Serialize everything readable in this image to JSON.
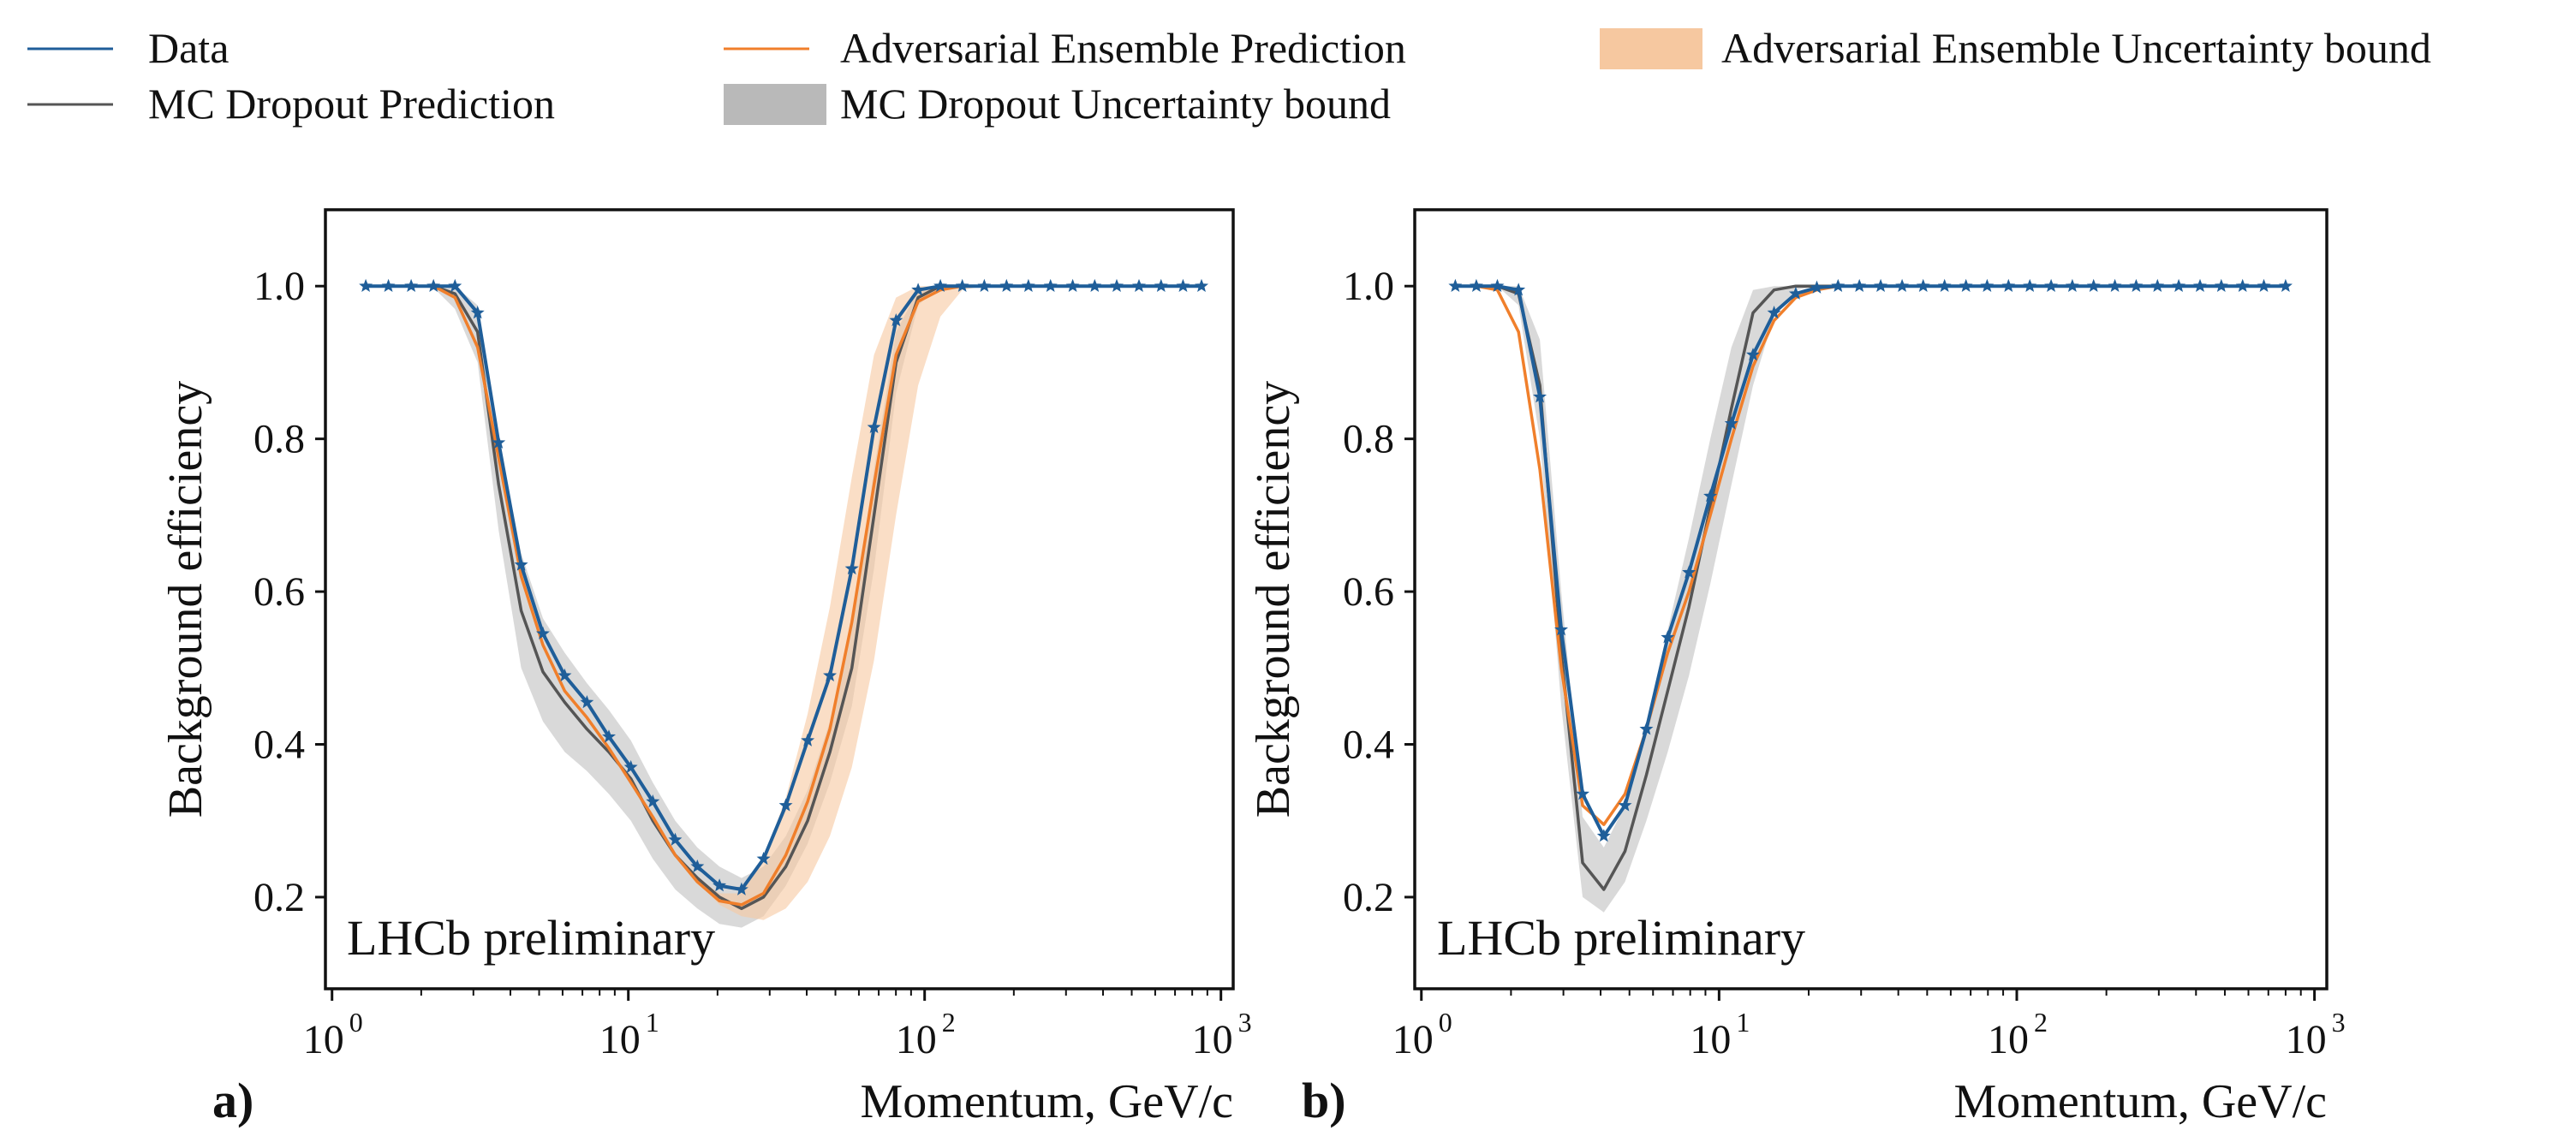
{
  "colors": {
    "data": "#1f5e99",
    "ensemble": "#f07f2b",
    "ensemble_band": "#f6c8a0",
    "dropout": "#555555",
    "dropout_band": "#b9b9b9"
  },
  "legend": [
    {
      "key": "data",
      "label": "Data",
      "kind": "line",
      "color_key": "data"
    },
    {
      "key": "ensemble",
      "label": "Adversarial Ensemble Prediction",
      "kind": "line",
      "color_key": "ensemble"
    },
    {
      "key": "ensemble_band",
      "label": "Adversarial Ensemble Uncertainty bound",
      "kind": "band",
      "color_key": "ensemble_band"
    },
    {
      "key": "dropout",
      "label": "MC Dropout Prediction",
      "kind": "line",
      "color_key": "dropout"
    },
    {
      "key": "dropout_band",
      "label": "MC Dropout Uncertainty bound",
      "kind": "band",
      "color_key": "dropout_band"
    }
  ],
  "chart_data": [
    {
      "type": "line",
      "panel": "a)",
      "annotation": "LHCb preliminary",
      "xlabel": "Momentum, GeV/c",
      "ylabel": "Background efficiency",
      "xscale": "log",
      "xlim": [
        0.95,
        1100
      ],
      "ylim": [
        0.08,
        1.1
      ],
      "x_ticks": [
        {
          "value": 1,
          "base": "10",
          "exp": "0"
        },
        {
          "value": 10,
          "base": "10",
          "exp": "1"
        },
        {
          "value": 100,
          "base": "10",
          "exp": "2"
        },
        {
          "value": 1000,
          "base": "10",
          "exp": "3"
        }
      ],
      "y_ticks": [
        {
          "value": 0.2,
          "label": "0.2"
        },
        {
          "value": 0.4,
          "label": "0.4"
        },
        {
          "value": 0.6,
          "label": "0.6"
        },
        {
          "value": 0.8,
          "label": "0.8"
        },
        {
          "value": 1.0,
          "label": "1.0"
        }
      ],
      "x": [
        1.3,
        1.55,
        1.85,
        2.2,
        2.6,
        3.1,
        3.65,
        4.35,
        5.15,
        6.1,
        7.25,
        8.6,
        10.2,
        12.1,
        14.4,
        17.1,
        20.3,
        24.1,
        28.6,
        34.0,
        40.3,
        47.9,
        56.8,
        67.5,
        80.1,
        95.1,
        113,
        134,
        159,
        189,
        224,
        266,
        316,
        375,
        445,
        529,
        628,
        745,
        860
      ],
      "series": [
        {
          "key": "data",
          "name": "Data",
          "values": [
            1.0,
            1.0,
            1.0,
            1.0,
            1.0,
            0.965,
            0.795,
            0.635,
            0.545,
            0.49,
            0.455,
            0.41,
            0.37,
            0.325,
            0.275,
            0.24,
            0.215,
            0.21,
            0.25,
            0.32,
            0.405,
            0.49,
            0.63,
            0.815,
            0.955,
            0.995,
            1.0,
            1.0,
            1.0,
            1.0,
            1.0,
            1.0,
            1.0,
            1.0,
            1.0,
            1.0,
            1.0,
            1.0,
            1.0
          ]
        },
        {
          "key": "ensemble",
          "name": "Adversarial Ensemble Prediction",
          "values": [
            1.0,
            1.0,
            1.0,
            1.0,
            0.985,
            0.92,
            0.775,
            0.62,
            0.53,
            0.47,
            0.435,
            0.395,
            0.35,
            0.305,
            0.255,
            0.22,
            0.195,
            0.19,
            0.205,
            0.255,
            0.325,
            0.42,
            0.56,
            0.74,
            0.91,
            0.98,
            0.995,
            1.0,
            1.0,
            1.0,
            1.0,
            1.0,
            1.0,
            1.0,
            1.0,
            1.0,
            1.0,
            1.0,
            1.0
          ]
        },
        {
          "key": "dropout",
          "name": "MC Dropout Prediction",
          "values": [
            1.0,
            1.0,
            1.0,
            1.0,
            0.99,
            0.94,
            0.74,
            0.575,
            0.495,
            0.455,
            0.42,
            0.39,
            0.355,
            0.3,
            0.255,
            0.225,
            0.2,
            0.185,
            0.2,
            0.24,
            0.3,
            0.39,
            0.5,
            0.7,
            0.9,
            0.985,
            1.0,
            1.0,
            1.0,
            1.0,
            1.0,
            1.0,
            1.0,
            1.0,
            1.0,
            1.0,
            1.0,
            1.0,
            1.0
          ]
        }
      ],
      "bands": [
        {
          "key": "dropout_band",
          "name": "MC Dropout Uncertainty bound",
          "lower": [
            1.0,
            1.0,
            1.0,
            0.998,
            0.97,
            0.9,
            0.68,
            0.5,
            0.43,
            0.39,
            0.365,
            0.335,
            0.3,
            0.25,
            0.21,
            0.185,
            0.165,
            0.16,
            0.175,
            0.215,
            0.27,
            0.35,
            0.45,
            0.63,
            0.86,
            0.975,
            1.0,
            1.0,
            1.0,
            1.0,
            1.0,
            1.0,
            1.0,
            1.0,
            1.0,
            1.0,
            1.0,
            1.0,
            1.0
          ],
          "upper": [
            1.0,
            1.0,
            1.0,
            1.0,
            1.0,
            0.975,
            0.8,
            0.65,
            0.565,
            0.52,
            0.48,
            0.445,
            0.405,
            0.35,
            0.3,
            0.265,
            0.24,
            0.225,
            0.24,
            0.28,
            0.34,
            0.43,
            0.55,
            0.76,
            0.94,
            0.995,
            1.0,
            1.0,
            1.0,
            1.0,
            1.0,
            1.0,
            1.0,
            1.0,
            1.0,
            1.0,
            1.0,
            1.0,
            1.0
          ]
        },
        {
          "key": "ensemble_band",
          "name": "Adversarial Ensemble Uncertainty bound",
          "lower": [
            1.0,
            1.0,
            1.0,
            1.0,
            0.985,
            0.92,
            0.775,
            0.62,
            0.53,
            0.47,
            0.435,
            0.395,
            0.35,
            0.305,
            0.255,
            0.22,
            0.19,
            0.175,
            0.17,
            0.185,
            0.22,
            0.28,
            0.37,
            0.51,
            0.7,
            0.87,
            0.96,
            0.995,
            1.0,
            1.0,
            1.0,
            1.0,
            1.0,
            1.0,
            1.0,
            1.0,
            1.0,
            1.0,
            1.0
          ],
          "upper": [
            1.0,
            1.0,
            1.0,
            1.0,
            0.985,
            0.92,
            0.775,
            0.62,
            0.53,
            0.47,
            0.435,
            0.395,
            0.35,
            0.305,
            0.255,
            0.225,
            0.205,
            0.205,
            0.25,
            0.33,
            0.44,
            0.58,
            0.75,
            0.91,
            0.985,
            1.0,
            1.0,
            1.0,
            1.0,
            1.0,
            1.0,
            1.0,
            1.0,
            1.0,
            1.0,
            1.0,
            1.0,
            1.0,
            1.0
          ]
        }
      ]
    },
    {
      "type": "line",
      "panel": "b)",
      "annotation": "LHCb preliminary",
      "xlabel": "Momentum, GeV/c",
      "ylabel": "Background efficiency",
      "xscale": "log",
      "xlim": [
        0.95,
        1100
      ],
      "ylim": [
        0.08,
        1.1
      ],
      "x_ticks": [
        {
          "value": 1,
          "base": "10",
          "exp": "0"
        },
        {
          "value": 10,
          "base": "10",
          "exp": "1"
        },
        {
          "value": 100,
          "base": "10",
          "exp": "2"
        },
        {
          "value": 1000,
          "base": "10",
          "exp": "3"
        }
      ],
      "y_ticks": [
        {
          "value": 0.2,
          "label": "0.2"
        },
        {
          "value": 0.4,
          "label": "0.4"
        },
        {
          "value": 0.6,
          "label": "0.6"
        },
        {
          "value": 0.8,
          "label": "0.8"
        },
        {
          "value": 1.0,
          "label": "1.0"
        }
      ],
      "x": [
        1.3,
        1.53,
        1.8,
        2.12,
        2.5,
        2.95,
        3.48,
        4.1,
        4.83,
        5.7,
        6.72,
        7.92,
        9.34,
        11.0,
        13.0,
        15.3,
        18.1,
        21.3,
        25.1,
        29.6,
        34.9,
        41.2,
        48.5,
        57.2,
        67.5,
        79.5,
        93.8,
        110.6,
        130.4,
        153.7,
        181.2,
        213.6,
        251.8,
        296.9,
        350.0,
        412.6,
        486.5,
        573.5,
        676.1,
        800
      ],
      "series": [
        {
          "key": "data",
          "name": "Data",
          "values": [
            1.0,
            1.0,
            1.0,
            0.995,
            0.855,
            0.55,
            0.335,
            0.28,
            0.32,
            0.42,
            0.54,
            0.625,
            0.725,
            0.82,
            0.91,
            0.965,
            0.99,
            0.998,
            1.0,
            1.0,
            1.0,
            1.0,
            1.0,
            1.0,
            1.0,
            1.0,
            1.0,
            1.0,
            1.0,
            1.0,
            1.0,
            1.0,
            1.0,
            1.0,
            1.0,
            1.0,
            1.0,
            1.0,
            1.0,
            1.0
          ]
        },
        {
          "key": "ensemble",
          "name": "Adversarial Ensemble Prediction",
          "values": [
            1.0,
            1.0,
            0.995,
            0.94,
            0.76,
            0.5,
            0.32,
            0.295,
            0.335,
            0.42,
            0.52,
            0.6,
            0.7,
            0.8,
            0.895,
            0.955,
            0.985,
            0.995,
            1.0,
            1.0,
            1.0,
            1.0,
            1.0,
            1.0,
            1.0,
            1.0,
            1.0,
            1.0,
            1.0,
            1.0,
            1.0,
            1.0,
            1.0,
            1.0,
            1.0,
            1.0,
            1.0,
            1.0,
            1.0,
            1.0
          ]
        },
        {
          "key": "dropout",
          "name": "MC Dropout Prediction",
          "values": [
            1.0,
            1.0,
            1.0,
            0.99,
            0.87,
            0.52,
            0.245,
            0.21,
            0.26,
            0.36,
            0.47,
            0.58,
            0.71,
            0.84,
            0.965,
            0.995,
            1.0,
            1.0,
            1.0,
            1.0,
            1.0,
            1.0,
            1.0,
            1.0,
            1.0,
            1.0,
            1.0,
            1.0,
            1.0,
            1.0,
            1.0,
            1.0,
            1.0,
            1.0,
            1.0,
            1.0,
            1.0,
            1.0,
            1.0,
            1.0
          ]
        }
      ],
      "bands": [
        {
          "key": "dropout_band",
          "name": "MC Dropout Uncertainty bound",
          "lower": [
            1.0,
            1.0,
            1.0,
            0.975,
            0.8,
            0.45,
            0.2,
            0.18,
            0.22,
            0.3,
            0.39,
            0.49,
            0.61,
            0.74,
            0.87,
            0.96,
            0.995,
            1.0,
            1.0,
            1.0,
            1.0,
            1.0,
            1.0,
            1.0,
            1.0,
            1.0,
            1.0,
            1.0,
            1.0,
            1.0,
            1.0,
            1.0,
            1.0,
            1.0,
            1.0,
            1.0,
            1.0,
            1.0,
            1.0,
            1.0
          ],
          "upper": [
            1.0,
            1.0,
            1.0,
            1.0,
            0.93,
            0.6,
            0.305,
            0.265,
            0.32,
            0.43,
            0.55,
            0.67,
            0.8,
            0.92,
            0.995,
            1.0,
            1.0,
            1.0,
            1.0,
            1.0,
            1.0,
            1.0,
            1.0,
            1.0,
            1.0,
            1.0,
            1.0,
            1.0,
            1.0,
            1.0,
            1.0,
            1.0,
            1.0,
            1.0,
            1.0,
            1.0,
            1.0,
            1.0,
            1.0,
            1.0
          ]
        }
      ]
    }
  ]
}
